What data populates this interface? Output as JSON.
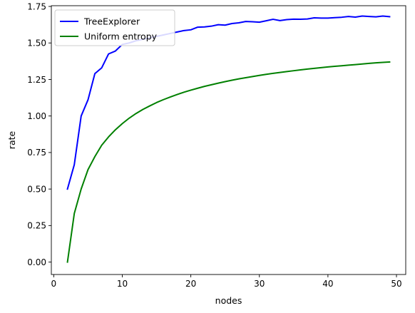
{
  "chart_data": {
    "type": "line",
    "title": "",
    "xlabel": "nodes",
    "ylabel": "rate",
    "xlim": [
      -0.35,
      51.35
    ],
    "ylim": [
      -0.085,
      1.755
    ],
    "xticks": [
      0,
      10,
      20,
      30,
      40,
      50
    ],
    "yticks": [
      0.0,
      0.25,
      0.5,
      0.75,
      1.0,
      1.25,
      1.5,
      1.75
    ],
    "grid": false,
    "legend_position": "top-left",
    "series": [
      {
        "name": "TreeExplorer",
        "color": "#0000ff",
        "x": [
          2,
          3,
          4,
          5,
          6,
          7,
          8,
          9,
          10,
          11,
          12,
          13,
          14,
          15,
          16,
          17,
          18,
          19,
          20,
          21,
          22,
          23,
          24,
          25,
          26,
          27,
          28,
          29,
          30,
          31,
          32,
          33,
          34,
          35,
          36,
          37,
          38,
          39,
          40,
          41,
          42,
          43,
          44,
          45,
          46,
          47,
          48,
          49
        ],
        "y": [
          0.5,
          0.667,
          1.0,
          1.111,
          1.29,
          1.33,
          1.425,
          1.445,
          1.49,
          1.5,
          1.515,
          1.525,
          1.535,
          1.545,
          1.555,
          1.565,
          1.575,
          1.585,
          1.59,
          1.608,
          1.61,
          1.615,
          1.625,
          1.622,
          1.633,
          1.638,
          1.647,
          1.645,
          1.642,
          1.652,
          1.662,
          1.653,
          1.66,
          1.663,
          1.662,
          1.664,
          1.672,
          1.67,
          1.67,
          1.673,
          1.676,
          1.681,
          1.677,
          1.684,
          1.681,
          1.679,
          1.684,
          1.68
        ]
      },
      {
        "name": "Uniform entropy",
        "color": "#008000",
        "x": [
          2,
          3,
          4,
          5,
          6,
          7,
          8,
          9,
          10,
          11,
          12,
          13,
          14,
          15,
          16,
          17,
          18,
          19,
          20,
          21,
          22,
          23,
          24,
          25,
          26,
          27,
          28,
          29,
          30,
          31,
          32,
          33,
          34,
          35,
          36,
          37,
          38,
          39,
          40,
          41,
          42,
          43,
          44,
          45,
          46,
          47,
          48,
          49
        ],
        "y": [
          0.0,
          0.333,
          0.5,
          0.633,
          0.722,
          0.8,
          0.857,
          0.906,
          0.948,
          0.985,
          1.017,
          1.045,
          1.069,
          1.092,
          1.112,
          1.13,
          1.147,
          1.163,
          1.177,
          1.19,
          1.203,
          1.214,
          1.225,
          1.235,
          1.245,
          1.254,
          1.262,
          1.27,
          1.278,
          1.285,
          1.292,
          1.298,
          1.304,
          1.31,
          1.316,
          1.321,
          1.326,
          1.331,
          1.336,
          1.34,
          1.344,
          1.348,
          1.352,
          1.356,
          1.36,
          1.364,
          1.367,
          1.37
        ]
      }
    ]
  }
}
